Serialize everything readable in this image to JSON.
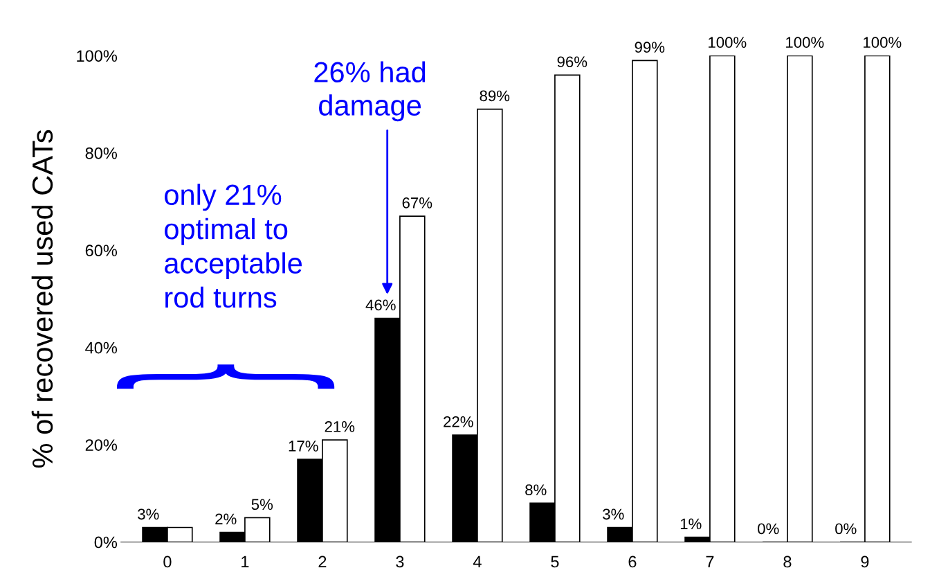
{
  "chart_data": {
    "type": "bar",
    "ylabel": "% of recovered used CATs",
    "categories": [
      "0",
      "1",
      "2",
      "3",
      "4",
      "5",
      "6",
      "7",
      "8",
      "9"
    ],
    "series": [
      {
        "color": "#000000",
        "values": [
          3,
          2,
          17,
          46,
          22,
          8,
          3,
          1,
          0,
          0
        ],
        "value_labels": [
          "3%",
          "2%",
          "17%",
          "46%",
          "22%",
          "8%",
          "3%",
          "1%",
          "0%",
          "0%"
        ]
      },
      {
        "color": "#ffffff",
        "values": [
          3,
          5,
          21,
          67,
          89,
          96,
          99,
          100,
          100,
          100
        ],
        "value_labels": [
          null,
          "5%",
          "21%",
          "67%",
          "89%",
          "96%",
          "99%",
          "100%",
          "100%",
          "100%"
        ]
      }
    ],
    "ylim": [
      0,
      100
    ],
    "yticks": [
      {
        "value": 0,
        "label": "0%"
      },
      {
        "value": 20,
        "label": "20%"
      },
      {
        "value": 40,
        "label": "40%"
      },
      {
        "value": 60,
        "label": "60%"
      },
      {
        "value": 80,
        "label": "80%"
      },
      {
        "value": 100,
        "label": "100%"
      }
    ],
    "grid": false,
    "legend": false,
    "annotations": [
      "26% had damage",
      "only 21% optimal to acceptable rod turns"
    ]
  }
}
